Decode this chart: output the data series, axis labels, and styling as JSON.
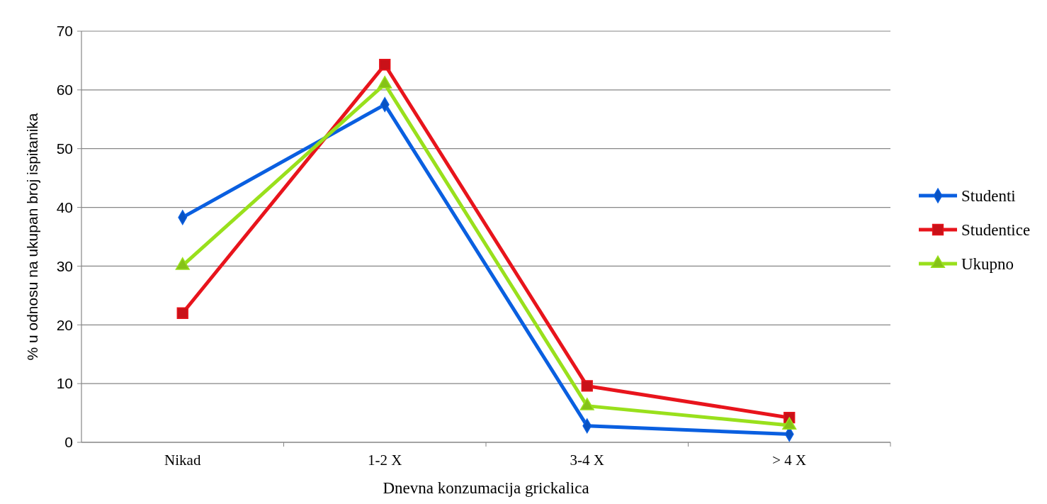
{
  "chart_data": {
    "type": "line",
    "xlabel": "Dnevna konzumacija grickalica",
    "ylabel": "% u odnosu na ukupan broj ispitanika",
    "categories": [
      "Nikad",
      "1-2 X",
      "3-4 X",
      "> 4 X"
    ],
    "series": [
      {
        "name": "Studenti",
        "color": "#0a5fe0",
        "marker": "diamond",
        "values": [
          38.3,
          57.5,
          2.8,
          1.4
        ]
      },
      {
        "name": "Studentice",
        "color": "#e8141c",
        "marker": "square",
        "values": [
          22,
          64.3,
          9.6,
          4.2
        ]
      },
      {
        "name": "Ukupno",
        "color": "#99e01c",
        "marker": "triangle",
        "values": [
          30.1,
          61,
          6.2,
          2.9
        ]
      }
    ],
    "ylim": [
      0,
      70
    ],
    "yticks": [
      0,
      10,
      20,
      30,
      40,
      50,
      60,
      70
    ],
    "grid": "y",
    "legend": "right",
    "line_style": "solid"
  }
}
